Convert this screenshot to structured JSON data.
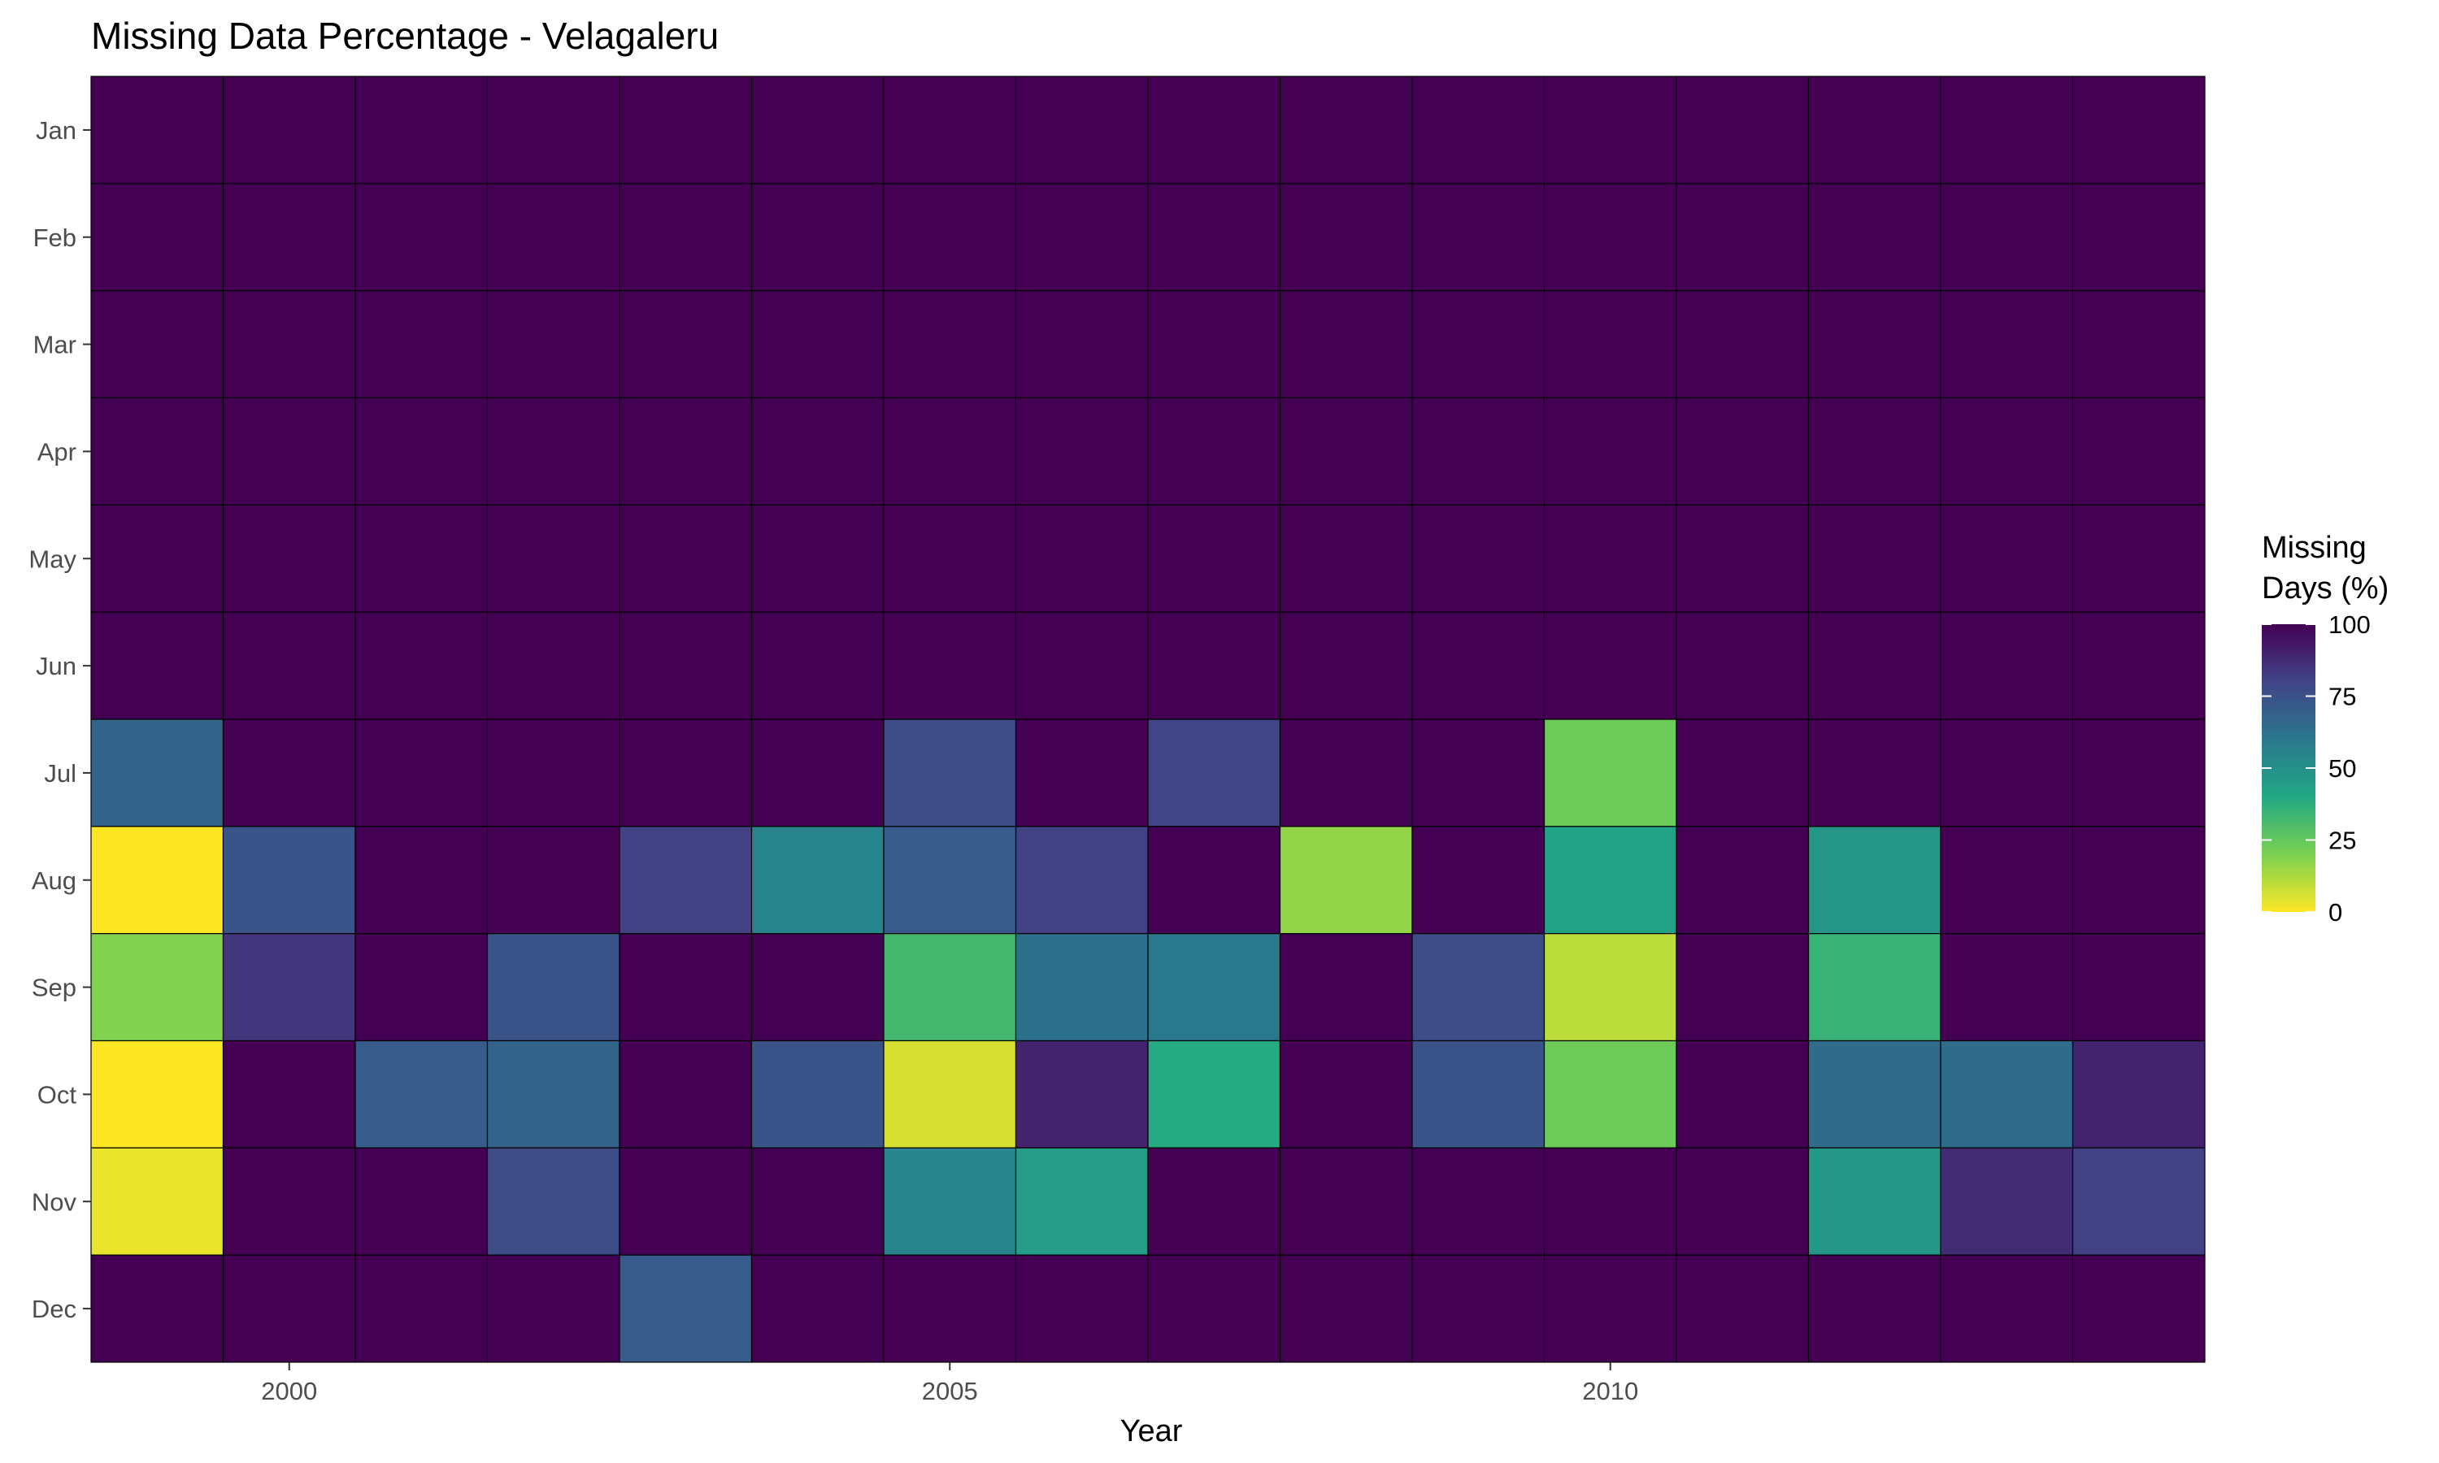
{
  "chart_data": {
    "type": "heatmap",
    "title": "Missing Data Percentage - Velagaleru",
    "xlabel": "Year",
    "ylabel": "",
    "x": [
      1999,
      2000,
      2001,
      2002,
      2003,
      2004,
      2005,
      2006,
      2007,
      2008,
      2009,
      2010,
      2011,
      2012,
      2013,
      2014
    ],
    "x_ticks": [
      2000,
      2005,
      2010
    ],
    "y": [
      "Jan",
      "Feb",
      "Mar",
      "Apr",
      "May",
      "Jun",
      "Jul",
      "Aug",
      "Sep",
      "Oct",
      "Nov",
      "Dec"
    ],
    "values": [
      [
        100,
        100,
        100,
        100,
        100,
        100,
        100,
        100,
        100,
        100,
        100,
        100,
        100,
        100,
        100,
        100
      ],
      [
        100,
        100,
        100,
        100,
        100,
        100,
        100,
        100,
        100,
        100,
        100,
        100,
        100,
        100,
        100,
        100
      ],
      [
        100,
        100,
        100,
        100,
        100,
        100,
        100,
        100,
        100,
        100,
        100,
        100,
        100,
        100,
        100,
        100
      ],
      [
        100,
        100,
        100,
        100,
        100,
        100,
        100,
        100,
        100,
        100,
        100,
        100,
        100,
        100,
        100,
        100
      ],
      [
        100,
        100,
        100,
        100,
        100,
        100,
        100,
        100,
        100,
        100,
        100,
        100,
        100,
        100,
        100,
        100
      ],
      [
        100,
        100,
        100,
        100,
        100,
        100,
        100,
        100,
        100,
        100,
        100,
        100,
        100,
        100,
        100,
        100
      ],
      [
        68,
        100,
        100,
        100,
        100,
        100,
        77,
        100,
        80,
        100,
        100,
        23,
        100,
        100,
        100,
        100
      ],
      [
        0,
        74,
        100,
        100,
        81,
        55,
        71,
        81,
        100,
        16,
        100,
        42,
        100,
        48,
        100,
        100
      ],
      [
        19,
        84,
        100,
        74,
        100,
        100,
        32,
        63,
        60,
        100,
        77,
        10,
        100,
        35,
        100,
        100
      ],
      [
        0,
        100,
        71,
        68,
        100,
        74,
        6,
        90,
        39,
        100,
        74,
        23,
        100,
        65,
        65,
        90
      ],
      [
        3,
        100,
        100,
        77,
        100,
        100,
        55,
        45,
        100,
        100,
        100,
        100,
        100,
        47,
        87,
        81
      ],
      [
        100,
        100,
        100,
        100,
        71,
        100,
        100,
        100,
        100,
        100,
        100,
        100,
        100,
        100,
        100,
        100
      ]
    ],
    "legend": {
      "title_lines": [
        "Missing",
        "Days (%)"
      ],
      "ticks": [
        0,
        25,
        50,
        75,
        100
      ],
      "position": "right"
    },
    "colorscale": "viridis-reversed",
    "colorscale_stops": [
      "#fde725",
      "#7ad151",
      "#22a884",
      "#2a788e",
      "#414487",
      "#440154"
    ],
    "value_range": [
      0,
      100
    ],
    "panel_background": "#ebebeb",
    "tile_border": "#000000"
  }
}
